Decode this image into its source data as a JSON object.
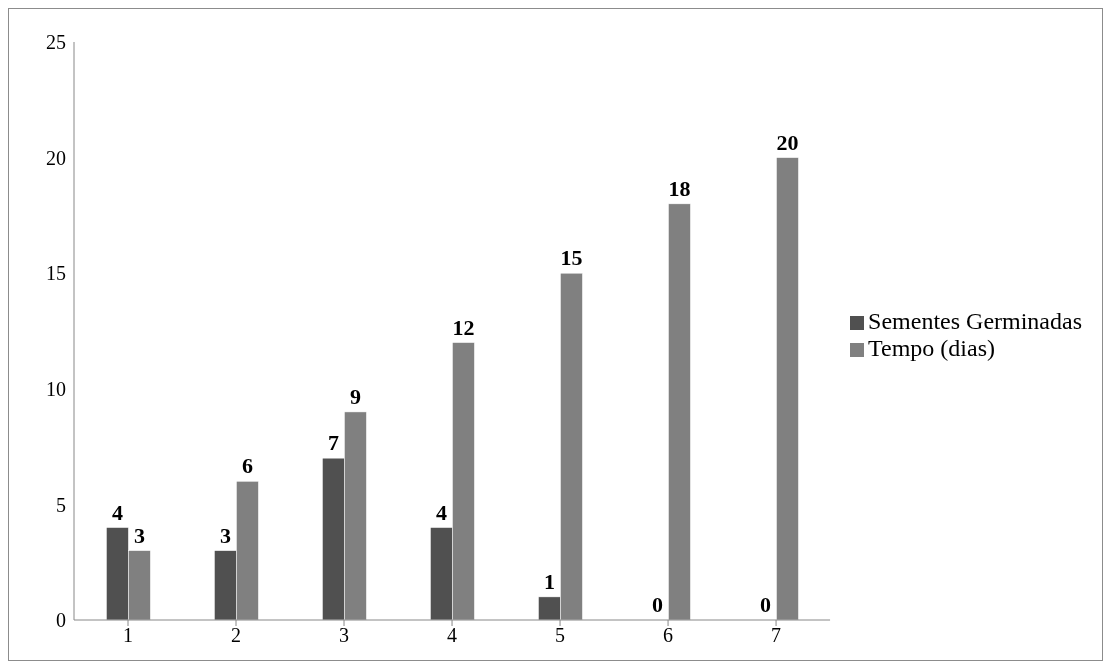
{
  "chart_data": {
    "type": "bar",
    "categories": [
      "1",
      "2",
      "3",
      "4",
      "5",
      "6",
      "7"
    ],
    "series": [
      {
        "name": "Sementes Germinadas",
        "color": "#505050",
        "values": [
          4,
          3,
          7,
          4,
          1,
          0,
          0
        ]
      },
      {
        "name": "Tempo (dias)",
        "color": "#808080",
        "values": [
          3,
          6,
          9,
          12,
          15,
          18,
          20
        ]
      }
    ],
    "ylim": [
      0,
      25
    ],
    "yticks": [
      0,
      5,
      10,
      15,
      20,
      25
    ],
    "grid": false,
    "legend": "right",
    "data_labels": true
  }
}
